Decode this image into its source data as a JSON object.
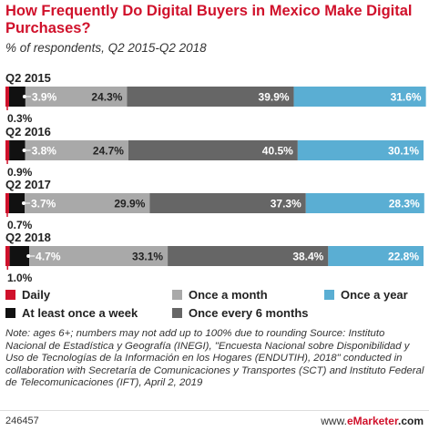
{
  "chart_data": {
    "type": "bar",
    "stacked": true,
    "orientation": "horizontal",
    "title": "How Frequently Do Digital Buyers in Mexico Make Digital Purchases?",
    "subtitle": "% of respondents, Q2 2015-Q2 2018",
    "categories": [
      "Q2 2015",
      "Q2 2016",
      "Q2 2017",
      "Q2 2018"
    ],
    "series": [
      {
        "name": "Daily",
        "color": "#d0112b",
        "values": [
          0.3,
          0.9,
          0.7,
          1.0
        ],
        "labels": [
          "0.3%",
          "0.9%",
          "0.7%",
          "1.0%"
        ]
      },
      {
        "name": "At least once a week",
        "color": "#111111",
        "values": [
          3.9,
          3.8,
          3.7,
          4.7
        ],
        "labels": [
          "3.9%",
          "3.8%",
          "3.7%",
          "4.7%"
        ]
      },
      {
        "name": "Once a month",
        "color": "#a9a9a9",
        "values": [
          24.3,
          24.7,
          29.9,
          33.1
        ],
        "labels": [
          "24.3%",
          "24.7%",
          "29.9%",
          "33.1%"
        ]
      },
      {
        "name": "Once every 6 months",
        "color": "#666666",
        "values": [
          39.9,
          40.5,
          37.3,
          38.4
        ],
        "labels": [
          "39.9%",
          "40.5%",
          "37.3%",
          "38.4%"
        ]
      },
      {
        "name": "Once a year",
        "color": "#5aaed3",
        "values": [
          31.6,
          30.1,
          28.3,
          22.8
        ],
        "labels": [
          "31.6%",
          "30.1%",
          "28.3%",
          "22.8%"
        ]
      }
    ],
    "legend_position": "bottom"
  },
  "notes": "Note: ages 6+; numbers may not add up to 100% due to rounding Source: Instituto Nacional de Estadística y Geografía (INEGI), \"Encuesta Nacional sobre Disponibilidad y Uso de Tecnologías de la Información en los Hogares (ENDUTIH), 2018\" conducted in collaboration with Secretaría de Comunicaciones y Transportes (SCT) and Instituto Federal de Telecomunicaciones (IFT), April 2, 2019",
  "footer": {
    "chart_id": "246457",
    "site_prefix": "www.",
    "site_brand": "eMarketer",
    "site_suffix": ".com"
  }
}
